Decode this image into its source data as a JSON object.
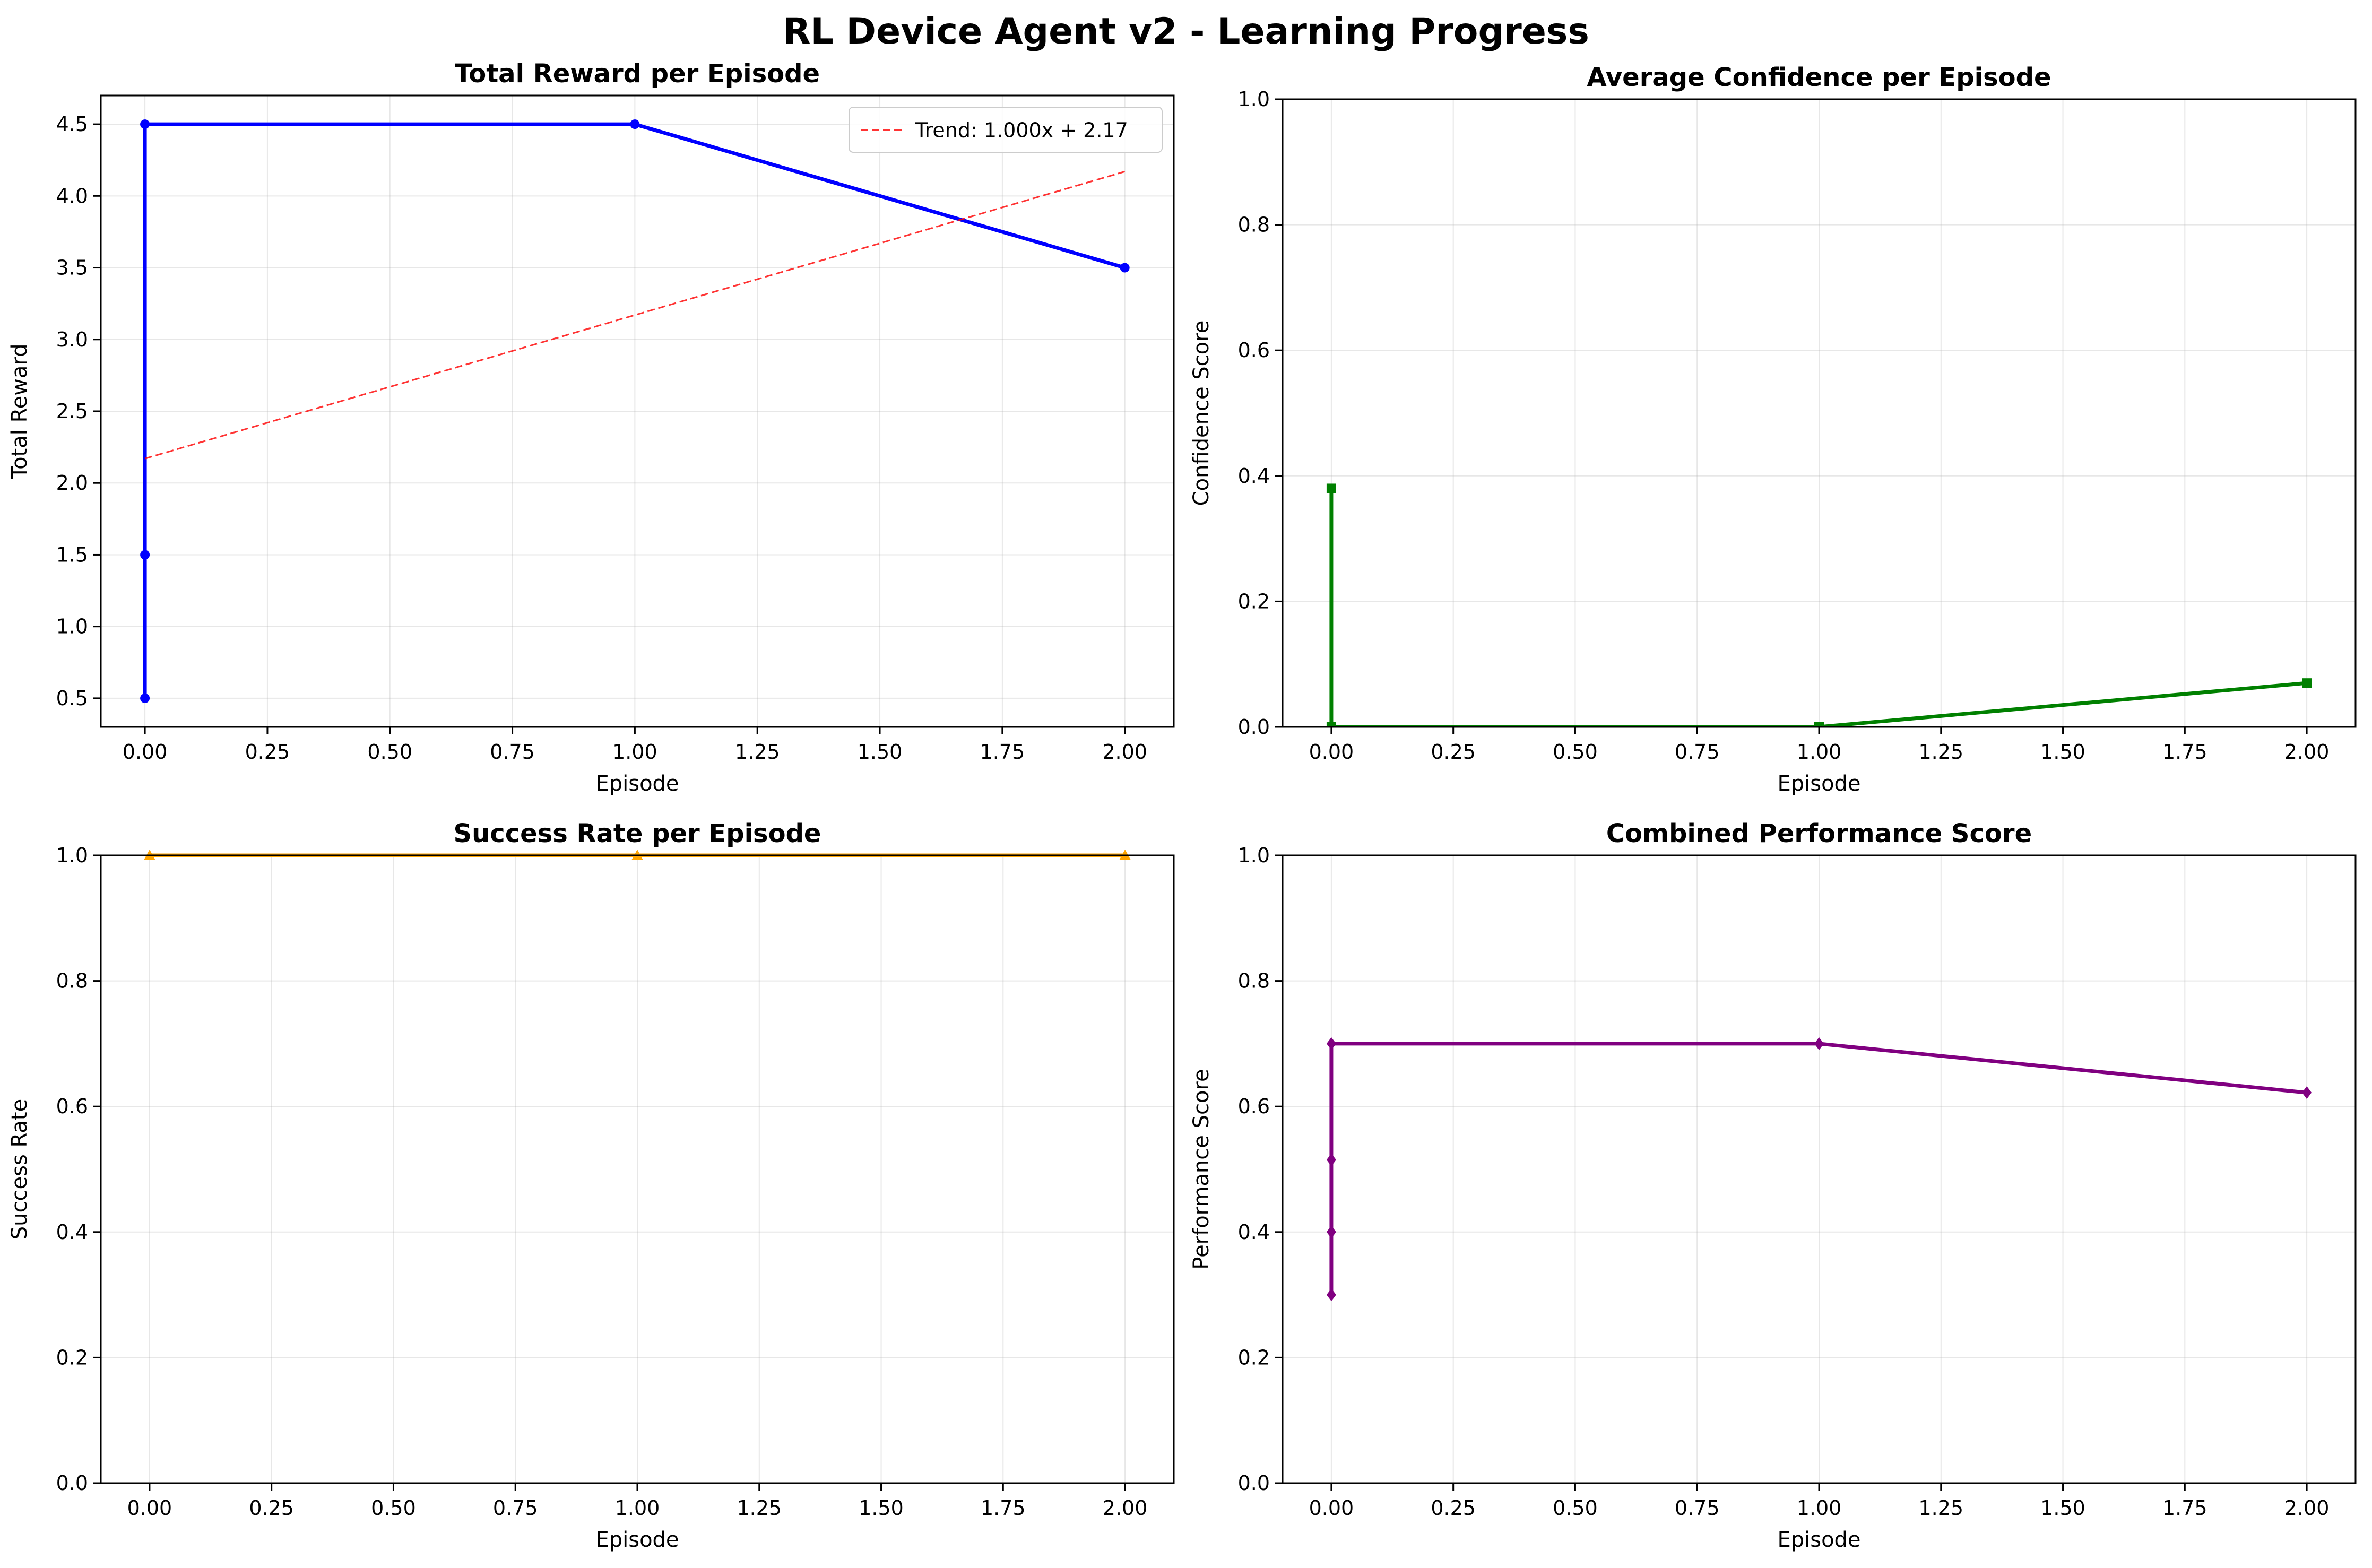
{
  "figure": {
    "title": "RL Device Agent v2 - Learning Progress"
  },
  "chart_data": [
    {
      "type": "line",
      "title": "Total Reward per Episode",
      "xlabel": "Episode",
      "ylabel": "Total Reward",
      "xlim": [
        -0.09,
        2.1
      ],
      "ylim": [
        0.3,
        4.7
      ],
      "xticks": [
        0.0,
        0.25,
        0.5,
        0.75,
        1.0,
        1.25,
        1.5,
        1.75,
        2.0
      ],
      "xtick_labels": [
        "0.00",
        "0.25",
        "0.50",
        "0.75",
        "1.00",
        "1.25",
        "1.50",
        "1.75",
        "2.00"
      ],
      "yticks": [
        0.5,
        1.0,
        1.5,
        2.0,
        2.5,
        3.0,
        3.5,
        4.0,
        4.5
      ],
      "ytick_labels": [
        "0.5",
        "1.0",
        "1.5",
        "2.0",
        "2.5",
        "3.0",
        "3.5",
        "4.0",
        "4.5"
      ],
      "grid": true,
      "legend_position": "top-right",
      "series": [
        {
          "color": "#0000ff",
          "marker": "circle",
          "x": [
            0,
            0,
            0,
            1,
            2
          ],
          "y": [
            0.5,
            1.5,
            4.5,
            4.5,
            3.5
          ]
        },
        {
          "name": "Trend: 1.000x + 2.17",
          "color": "#ff0000",
          "style": "dashed",
          "x": [
            0,
            2
          ],
          "y": [
            2.17,
            4.17
          ]
        }
      ]
    },
    {
      "type": "line",
      "title": "Average Confidence per Episode",
      "xlabel": "Episode",
      "ylabel": "Confidence Score",
      "xlim": [
        -0.1,
        2.1
      ],
      "ylim": [
        0.0,
        1.0
      ],
      "xticks": [
        0.0,
        0.25,
        0.5,
        0.75,
        1.0,
        1.25,
        1.5,
        1.75,
        2.0
      ],
      "xtick_labels": [
        "0.00",
        "0.25",
        "0.50",
        "0.75",
        "1.00",
        "1.25",
        "1.50",
        "1.75",
        "2.00"
      ],
      "yticks": [
        0.0,
        0.2,
        0.4,
        0.6,
        0.8,
        1.0
      ],
      "ytick_labels": [
        "0.0",
        "0.2",
        "0.4",
        "0.6",
        "0.8",
        "1.0"
      ],
      "grid": true,
      "series": [
        {
          "color": "#008000",
          "marker": "square",
          "x": [
            0,
            0,
            1,
            2
          ],
          "y": [
            0.38,
            0.0,
            0.0,
            0.07
          ]
        }
      ]
    },
    {
      "type": "line",
      "title": "Success Rate per Episode",
      "xlabel": "Episode",
      "ylabel": "Success Rate",
      "xlim": [
        -0.1,
        2.1
      ],
      "ylim": [
        0.0,
        1.0
      ],
      "xticks": [
        0.0,
        0.25,
        0.5,
        0.75,
        1.0,
        1.25,
        1.5,
        1.75,
        2.0
      ],
      "xtick_labels": [
        "0.00",
        "0.25",
        "0.50",
        "0.75",
        "1.00",
        "1.25",
        "1.50",
        "1.75",
        "2.00"
      ],
      "yticks": [
        0.0,
        0.2,
        0.4,
        0.6,
        0.8,
        1.0
      ],
      "ytick_labels": [
        "0.0",
        "0.2",
        "0.4",
        "0.6",
        "0.8",
        "1.0"
      ],
      "grid": true,
      "series": [
        {
          "color": "#ffa500",
          "marker": "triangle",
          "x": [
            0,
            1,
            2
          ],
          "y": [
            1.0,
            1.0,
            1.0
          ]
        }
      ]
    },
    {
      "type": "line",
      "title": "Combined Performance Score",
      "xlabel": "Episode",
      "ylabel": "Performance Score",
      "xlim": [
        -0.1,
        2.1
      ],
      "ylim": [
        0.0,
        1.0
      ],
      "xticks": [
        0.0,
        0.25,
        0.5,
        0.75,
        1.0,
        1.25,
        1.5,
        1.75,
        2.0
      ],
      "xtick_labels": [
        "0.00",
        "0.25",
        "0.50",
        "0.75",
        "1.00",
        "1.25",
        "1.50",
        "1.75",
        "2.00"
      ],
      "yticks": [
        0.0,
        0.2,
        0.4,
        0.6,
        0.8,
        1.0
      ],
      "ytick_labels": [
        "0.0",
        "0.2",
        "0.4",
        "0.6",
        "0.8",
        "1.0"
      ],
      "grid": true,
      "series": [
        {
          "color": "#800080",
          "marker": "diamond",
          "x": [
            0,
            0,
            0,
            0,
            1,
            2
          ],
          "y": [
            0.3,
            0.4,
            0.515,
            0.7,
            0.7,
            0.622
          ]
        }
      ]
    }
  ]
}
